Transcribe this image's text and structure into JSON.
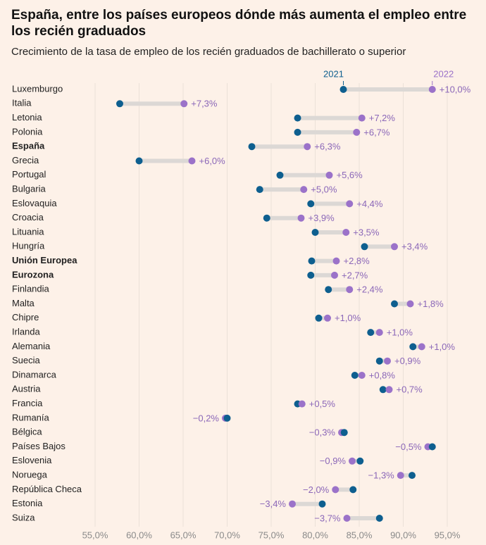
{
  "title": "España, entre los países europeos dónde más aumenta el empleo entre los recién graduados",
  "subtitle": "Crecimiento de la tasa de empleo de los recién graduados de bachillerato o superior",
  "colors": {
    "y2021": "#0e5f8f",
    "y2022": "#9b72c9",
    "change": "#8b67b8",
    "connector": "#dcd8d5",
    "grid": "#ebe1d8"
  },
  "chart_data": {
    "type": "dumbbell",
    "series_names": [
      "2021",
      "2022"
    ],
    "xlim": [
      55,
      95
    ],
    "ticks": [
      "55,0%",
      "60,0%",
      "65,0%",
      "70,0%",
      "75,0%",
      "80,0%",
      "85,0%",
      "90,0%",
      "95,0%"
    ],
    "tick_values": [
      55,
      60,
      65,
      70,
      75,
      80,
      85,
      90,
      95
    ],
    "rows": [
      {
        "country": "Luxemburgo",
        "v2021": 83.2,
        "v2022": 93.3,
        "change": "+10,0%",
        "bold": false
      },
      {
        "country": "Italia",
        "v2021": 57.8,
        "v2022": 65.1,
        "change": "+7,3%",
        "bold": false
      },
      {
        "country": "Letonia",
        "v2021": 78.0,
        "v2022": 85.3,
        "change": "+7,2%",
        "bold": false
      },
      {
        "country": "Polonia",
        "v2021": 78.0,
        "v2022": 84.7,
        "change": "+6,7%",
        "bold": false
      },
      {
        "country": "España",
        "v2021": 72.8,
        "v2022": 79.1,
        "change": "+6,3%",
        "bold": true
      },
      {
        "country": "Grecia",
        "v2021": 60.0,
        "v2022": 66.0,
        "change": "+6,0%",
        "bold": false
      },
      {
        "country": "Portugal",
        "v2021": 76.0,
        "v2022": 81.6,
        "change": "+5,6%",
        "bold": false
      },
      {
        "country": "Bulgaria",
        "v2021": 73.7,
        "v2022": 78.7,
        "change": "+5,0%",
        "bold": false
      },
      {
        "country": "Eslovaquia",
        "v2021": 79.5,
        "v2022": 83.9,
        "change": "+4,4%",
        "bold": false
      },
      {
        "country": "Croacia",
        "v2021": 74.5,
        "v2022": 78.4,
        "change": "+3,9%",
        "bold": false
      },
      {
        "country": "Lituania",
        "v2021": 80.0,
        "v2022": 83.5,
        "change": "+3,5%",
        "bold": false
      },
      {
        "country": "Hungría",
        "v2021": 85.6,
        "v2022": 89.0,
        "change": "+3,4%",
        "bold": false
      },
      {
        "country": "Unión Europea",
        "v2021": 79.6,
        "v2022": 82.4,
        "change": "+2,8%",
        "bold": true
      },
      {
        "country": "Eurozona",
        "v2021": 79.5,
        "v2022": 82.2,
        "change": "+2,7%",
        "bold": true
      },
      {
        "country": "Finlandia",
        "v2021": 81.5,
        "v2022": 83.9,
        "change": "+2,4%",
        "bold": false
      },
      {
        "country": "Malta",
        "v2021": 89.0,
        "v2022": 90.8,
        "change": "+1,8%",
        "bold": false
      },
      {
        "country": "Chipre",
        "v2021": 80.4,
        "v2022": 81.4,
        "change": "+1,0%",
        "bold": false
      },
      {
        "country": "Irlanda",
        "v2021": 86.3,
        "v2022": 87.3,
        "change": "+1,0%",
        "bold": false
      },
      {
        "country": "Alemania",
        "v2021": 91.1,
        "v2022": 92.1,
        "change": "+1,0%",
        "bold": false
      },
      {
        "country": "Suecia",
        "v2021": 87.3,
        "v2022": 88.2,
        "change": "+0,9%",
        "bold": false
      },
      {
        "country": "Dinamarca",
        "v2021": 84.5,
        "v2022": 85.3,
        "change": "+0,8%",
        "bold": false
      },
      {
        "country": "Austria",
        "v2021": 87.7,
        "v2022": 88.4,
        "change": "+0,7%",
        "bold": false
      },
      {
        "country": "Francia",
        "v2021": 78.0,
        "v2022": 78.5,
        "change": "+0,5%",
        "bold": false
      },
      {
        "country": "Rumanía",
        "v2021": 70.0,
        "v2022": 69.8,
        "change": "−0,2%",
        "bold": false
      },
      {
        "country": "Bélgica",
        "v2021": 83.3,
        "v2022": 83.0,
        "change": "−0,3%",
        "bold": false
      },
      {
        "country": "Países Bajos",
        "v2021": 93.3,
        "v2022": 92.8,
        "change": "−0,5%",
        "bold": false
      },
      {
        "country": "Eslovenia",
        "v2021": 85.1,
        "v2022": 84.2,
        "change": "−0,9%",
        "bold": false
      },
      {
        "country": "Noruega",
        "v2021": 91.0,
        "v2022": 89.7,
        "change": "−1,3%",
        "bold": false
      },
      {
        "country": "República Checa",
        "v2021": 84.3,
        "v2022": 82.3,
        "change": "−2,0%",
        "bold": false
      },
      {
        "country": "Estonia",
        "v2021": 80.8,
        "v2022": 77.4,
        "change": "−3,4%",
        "bold": false
      },
      {
        "country": "Suiza",
        "v2021": 87.3,
        "v2022": 83.6,
        "change": "−3,7%",
        "bold": false
      }
    ]
  }
}
